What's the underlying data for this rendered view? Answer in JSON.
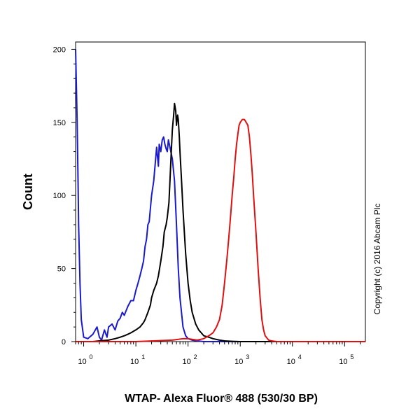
{
  "chart_data": {
    "type": "line",
    "title": "",
    "xlabel": "WTAP- Alexa Fluor® 488 (530/30 BP)",
    "ylabel": "Count",
    "x_scale": "log",
    "xlim": [
      0.7,
      250000
    ],
    "ylim": [
      0,
      205
    ],
    "y_ticks": [
      0,
      50,
      100,
      150,
      200
    ],
    "x_ticks": [
      {
        "value": 1,
        "base": "10",
        "exp": "0"
      },
      {
        "value": 10,
        "base": "10",
        "exp": "1"
      },
      {
        "value": 100,
        "base": "10",
        "exp": "2"
      },
      {
        "value": 1000,
        "base": "10",
        "exp": "3"
      },
      {
        "value": 10000,
        "base": "10",
        "exp": "4"
      },
      {
        "value": 100000,
        "base": "10",
        "exp": "5"
      }
    ],
    "grid": false,
    "annotation": "Copyright (c) 2016 Abcam Plc",
    "series": [
      {
        "color": "#1a1acc",
        "x": [
          0.7,
          0.72,
          0.75,
          0.78,
          0.8,
          0.85,
          0.9,
          1.0,
          1.2,
          1.5,
          1.8,
          2.0,
          2.2,
          2.5,
          2.8,
          3.0,
          3.5,
          4.0,
          4.5,
          5.0,
          5.5,
          6.0,
          7.0,
          8.0,
          9.0,
          10.0,
          11.0,
          12.0,
          13.0,
          14.0,
          15.0,
          16.0,
          17.0,
          18.0,
          20.0,
          22.0,
          25.0,
          27.0,
          28.0,
          30.0,
          32.0,
          34.0,
          36.0,
          38.0,
          40.0,
          42.0,
          45.0,
          50.0,
          55.0,
          60.0,
          65.0,
          70.0,
          80.0,
          90.0,
          100.0,
          120.0,
          150.0,
          200.0,
          300.0,
          500.0,
          1000.0,
          10000.0,
          250000.0
        ],
        "y": [
          200,
          180,
          150,
          110,
          80,
          40,
          15,
          3,
          2,
          5,
          10,
          3,
          1,
          8,
          3,
          10,
          12,
          8,
          14,
          16,
          20,
          18,
          24,
          28,
          28,
          35,
          40,
          45,
          50,
          55,
          65,
          70,
          80,
          82,
          100,
          110,
          133,
          120,
          135,
          130,
          138,
          140,
          135,
          132,
          130,
          138,
          133,
          125,
          110,
          80,
          50,
          30,
          10,
          4,
          2,
          1,
          0.5,
          0,
          0,
          0,
          0,
          0,
          0
        ]
      },
      {
        "color": "#000000",
        "x": [
          0.7,
          1.0,
          1.5,
          2.0,
          3.0,
          4.0,
          5.0,
          6.0,
          7.0,
          8.0,
          10.0,
          12.0,
          14.0,
          15.0,
          17.0,
          19.0,
          20.0,
          22.0,
          25.0,
          27.0,
          30.0,
          33.0,
          35.0,
          38.0,
          40.0,
          43.0,
          45.0,
          47.0,
          50.0,
          53.0,
          55.0,
          58.0,
          60.0,
          63.0,
          65.0,
          68.0,
          70.0,
          75.0,
          80.0,
          90.0,
          100.0,
          110.0,
          120.0,
          140.0,
          160.0,
          200.0,
          250.0,
          300.0,
          400.0,
          500.0,
          700.0,
          1000.0,
          2000.0,
          10000.0,
          250000.0
        ],
        "y": [
          0,
          0,
          0,
          0.5,
          1,
          2,
          3,
          4,
          5,
          6,
          8,
          10,
          13,
          15,
          20,
          25,
          30,
          35,
          40,
          45,
          55,
          65,
          75,
          80,
          85,
          95,
          110,
          125,
          145,
          155,
          163,
          158,
          148,
          155,
          152,
          140,
          130,
          110,
          90,
          60,
          40,
          28,
          20,
          12,
          8,
          4,
          3,
          2,
          1,
          0.5,
          0.2,
          0,
          0,
          0,
          0
        ]
      },
      {
        "color": "#dd1111",
        "x": [
          0.7,
          10.0,
          50.0,
          80.0,
          100.0,
          150.0,
          200.0,
          250.0,
          300.0,
          350.0,
          400.0,
          450.0,
          500.0,
          550.0,
          600.0,
          650.0,
          700.0,
          750.0,
          800.0,
          850.0,
          900.0,
          950.0,
          1000.0,
          1100.0,
          1200.0,
          1300.0,
          1400.0,
          1500.0,
          1600.0,
          1700.0,
          1800.0,
          2000.0,
          2200.0,
          2400.0,
          2600.0,
          2800.0,
          3000.0,
          3500.0,
          4000.0,
          5000.0,
          10000.0,
          250000.0
        ],
        "y": [
          0,
          0,
          1,
          2,
          2,
          1,
          2,
          4,
          6,
          10,
          15,
          25,
          40,
          55,
          70,
          85,
          100,
          112,
          125,
          135,
          142,
          148,
          150,
          152,
          152,
          150,
          148,
          140,
          128,
          115,
          100,
          75,
          50,
          30,
          15,
          8,
          4,
          1,
          0.5,
          0,
          0,
          0
        ]
      }
    ]
  }
}
